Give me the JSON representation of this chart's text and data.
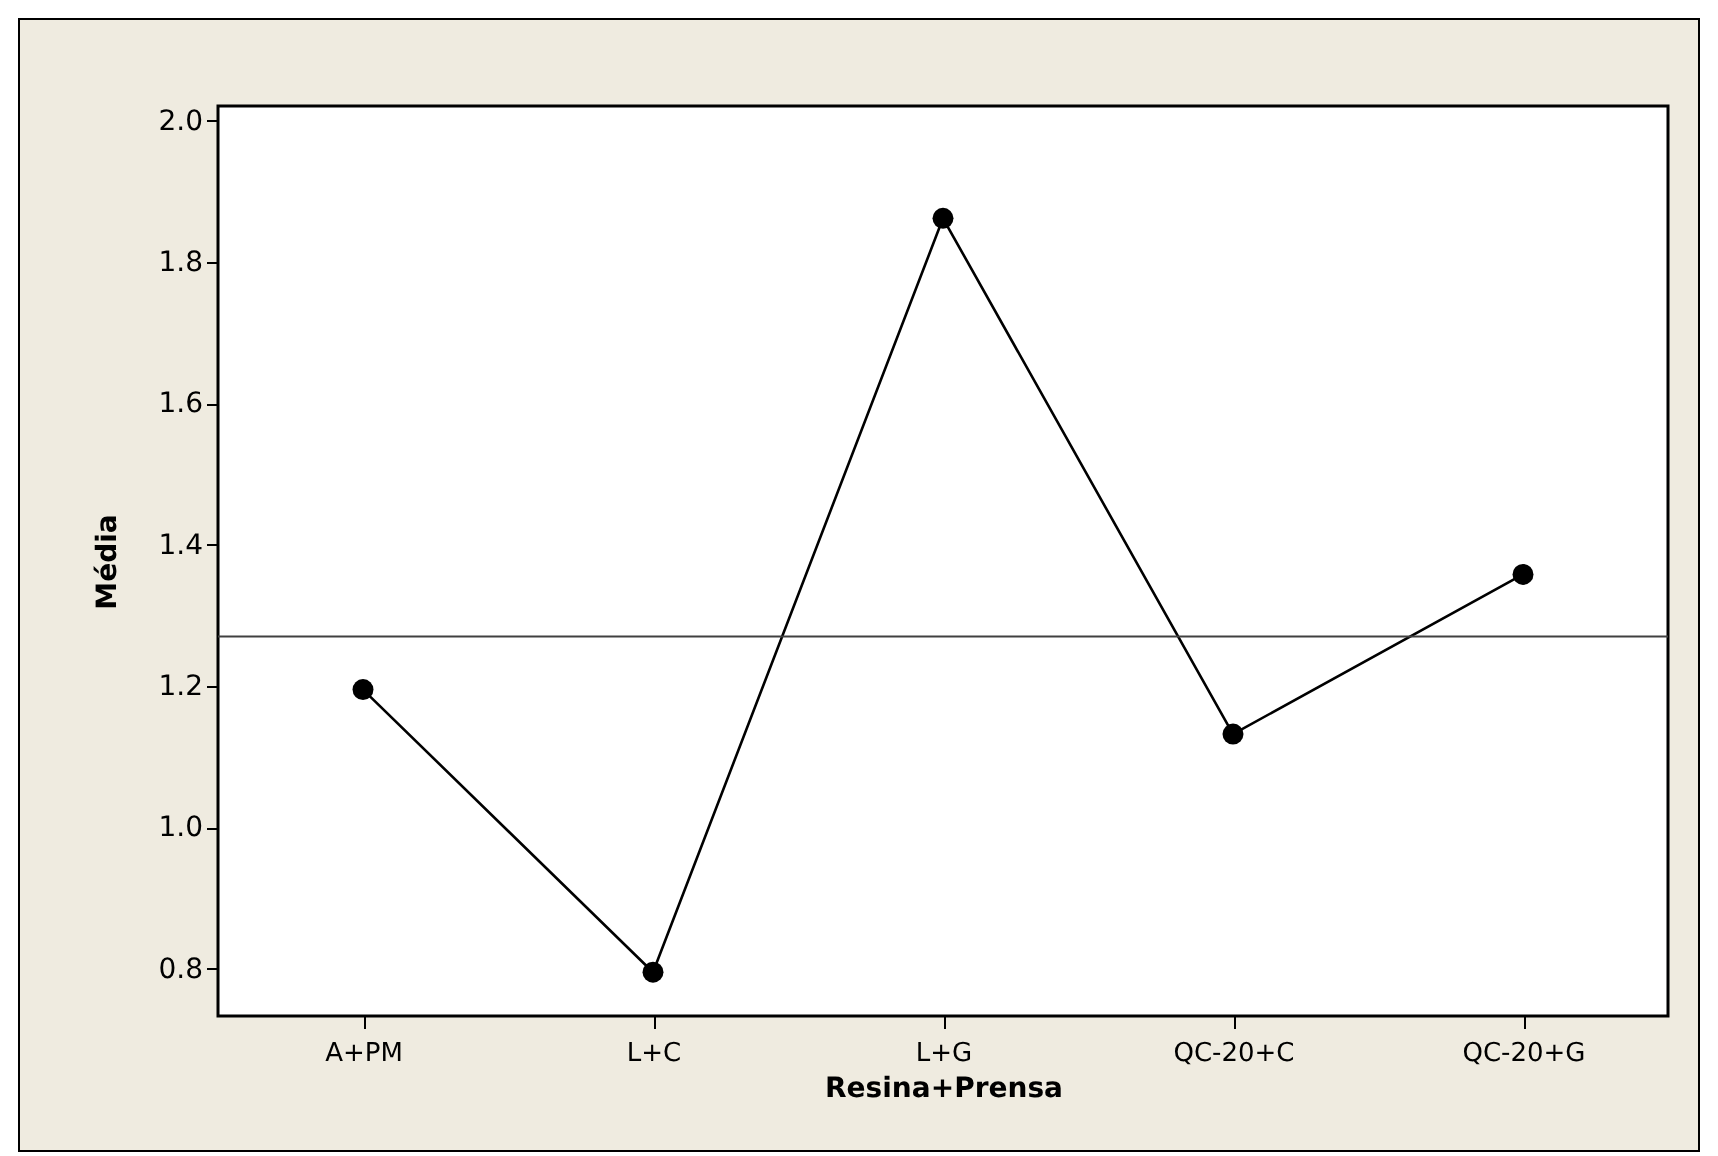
{
  "chart_data": {
    "type": "line",
    "xlabel": "Resina+Prensa",
    "ylabel": "Média",
    "categories": [
      "A+PM",
      "L+C",
      "L+G",
      "QC-20+C",
      "QC-20+G"
    ],
    "series": [
      {
        "color": "#000000",
        "values": [
          1.195,
          0.795,
          1.862,
          1.132,
          1.358
        ]
      }
    ],
    "ylim": [
      0.733,
      2.021
    ],
    "yticks": [
      0.8,
      {
        "value": 1,
        "label": "1.0"
      },
      1.2,
      1.4,
      1.6,
      1.8,
      {
        "value": 2,
        "label": "2.0"
      }
    ],
    "ref_lines": [
      {
        "axis": "y",
        "value": 1.27,
        "color": "#404040"
      }
    ],
    "marker": "circle",
    "line_style": "solid",
    "grid": false,
    "legend": false
  }
}
